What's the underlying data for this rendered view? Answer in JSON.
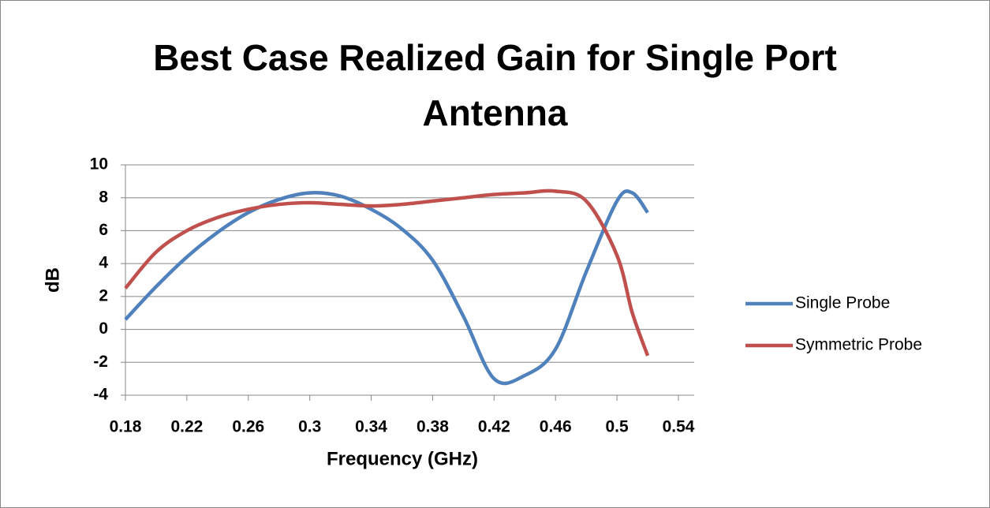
{
  "chart_data": {
    "type": "line",
    "title": "Best Case Realized Gain for Single Port Antenna",
    "x_label": "Frequency (GHz)",
    "y_label": "dB",
    "x": [
      0.18,
      0.2,
      0.22,
      0.24,
      0.26,
      0.28,
      0.3,
      0.32,
      0.34,
      0.36,
      0.38,
      0.4,
      0.42,
      0.44,
      0.46,
      0.48,
      0.5,
      0.51,
      0.52
    ],
    "series": [
      {
        "name": "Single Probe",
        "color": "#4f81bd",
        "values": [
          0.6,
          2.6,
          4.4,
          5.9,
          7.1,
          7.9,
          8.3,
          8.1,
          7.3,
          6.1,
          4.2,
          0.8,
          -3.0,
          -2.8,
          -1.2,
          3.5,
          7.8,
          8.3,
          7.1
        ]
      },
      {
        "name": "Symmetric Probe",
        "color": "#c0504d",
        "values": [
          2.5,
          4.7,
          6.0,
          6.8,
          7.3,
          7.6,
          7.7,
          7.6,
          7.5,
          7.6,
          7.8,
          8.0,
          8.2,
          8.3,
          8.4,
          7.8,
          4.5,
          1.0,
          -1.6
        ]
      }
    ],
    "xlim": [
      0.18,
      0.54
    ],
    "xticks": [
      0.18,
      0.22,
      0.26,
      0.3,
      0.34,
      0.38,
      0.42,
      0.46,
      0.5,
      0.54
    ],
    "ylim": [
      -4,
      10
    ],
    "yticks": [
      -4,
      -2,
      0,
      2,
      4,
      6,
      8,
      10
    ],
    "grid": true,
    "legend": "right"
  }
}
